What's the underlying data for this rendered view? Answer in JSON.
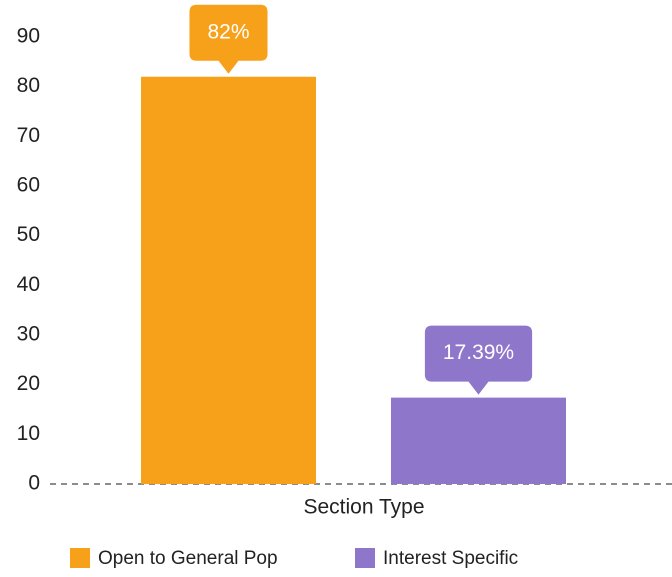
{
  "chart_data": {
    "type": "bar",
    "categories": [
      "Section Type"
    ],
    "series": [
      {
        "name": "Open to General Pop",
        "color": "#f7a11a",
        "values": [
          82
        ],
        "value_labels": [
          "82%"
        ]
      },
      {
        "name": "Interest Specific",
        "color": "#8e76ca",
        "values": [
          17.39
        ],
        "value_labels": [
          "17.39%"
        ]
      }
    ],
    "ylim": [
      0,
      90
    ],
    "yticks": [
      0,
      10,
      20,
      30,
      40,
      50,
      60,
      70,
      80,
      90
    ],
    "legend": "bottom"
  }
}
